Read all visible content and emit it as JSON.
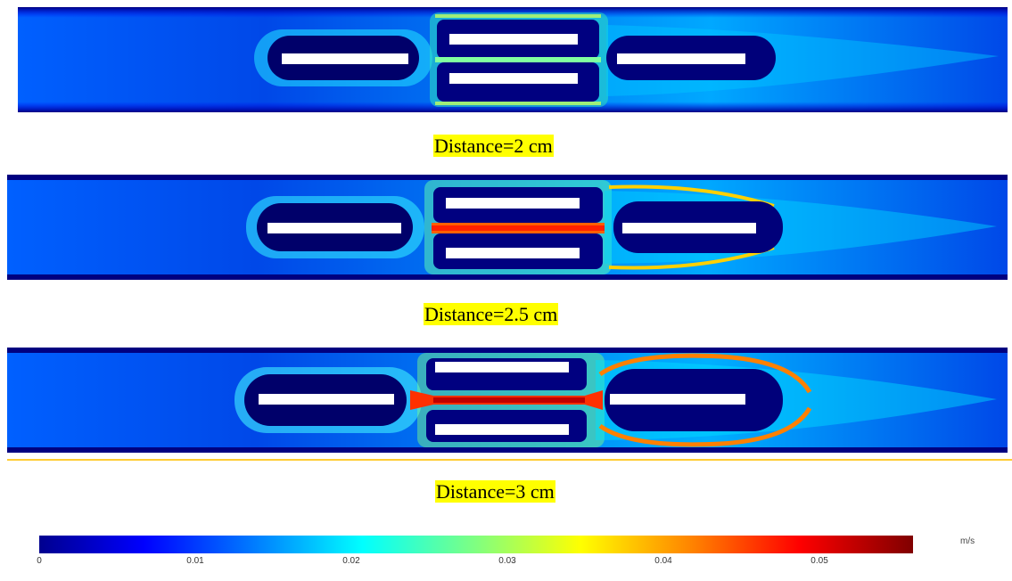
{
  "panels": [
    {
      "caption": "Distance=2 cm",
      "intensity": 0.45
    },
    {
      "caption": "Distance=2.5 cm",
      "intensity": 0.7
    },
    {
      "caption": "Distance=3 cm",
      "intensity": 0.95
    }
  ],
  "colorbar": {
    "unit": "m/s",
    "ticks": [
      "0",
      "0.01",
      "0.02",
      "0.03",
      "0.04",
      "0.05"
    ],
    "min": 0,
    "max": 0.056,
    "colors": [
      "#00008f",
      "#0000ff",
      "#0080ff",
      "#00ffff",
      "#80ff80",
      "#ffff00",
      "#ff8000",
      "#ff0000",
      "#800000"
    ]
  }
}
